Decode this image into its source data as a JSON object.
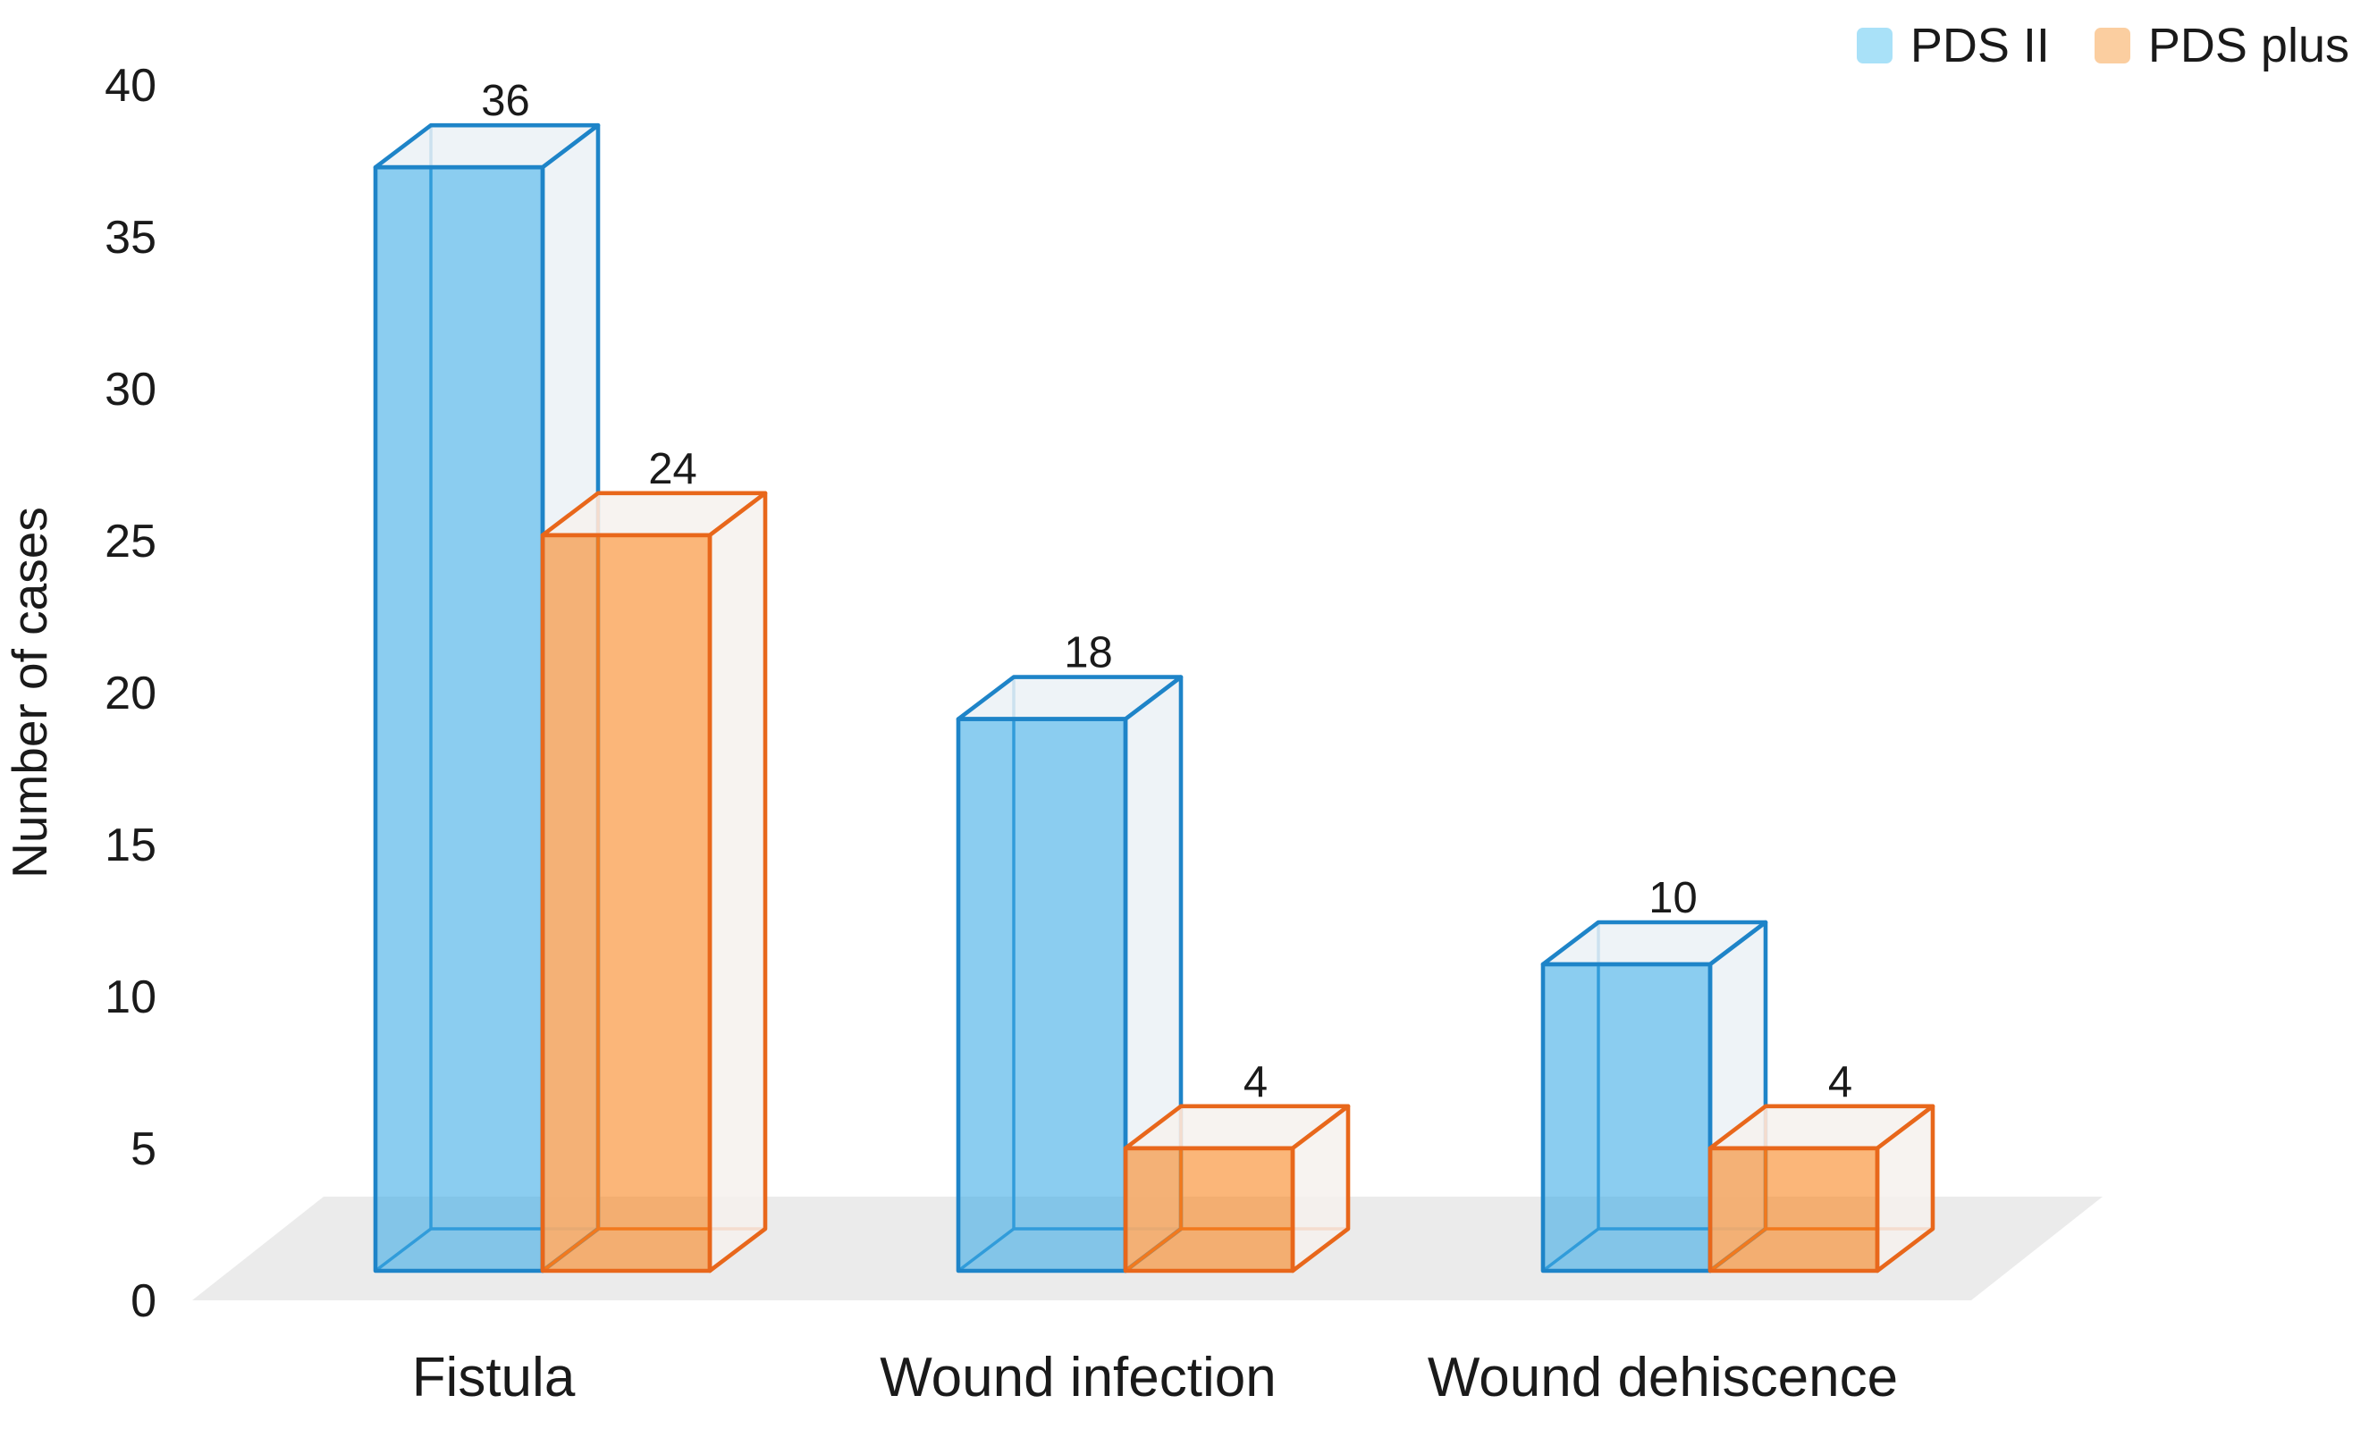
{
  "chart_data": {
    "type": "bar",
    "variant": "3d-column",
    "title": "",
    "categories": [
      "Fistula",
      "Wound infection",
      "Wound dehiscence"
    ],
    "series": [
      {
        "name": "PDS II",
        "values": [
          36,
          18,
          10
        ],
        "edge_color": "#1E84C8",
        "front_color": "#3EACE6",
        "face_color": "#EBF1F6",
        "legend_color": "#A9E1F8"
      },
      {
        "name": "PDS plus",
        "values": [
          24,
          4,
          4
        ],
        "edge_color": "#E8671B",
        "front_color": "#F88520",
        "face_color": "#F6F1ED",
        "legend_color": "#FBCEA0"
      }
    ],
    "data_labels": true,
    "xlabel": "",
    "ylabel": "Number of cases",
    "ylim": [
      0,
      40
    ],
    "yticks": [
      0,
      5,
      10,
      15,
      20,
      25,
      30,
      35,
      40
    ],
    "grid": false,
    "axis_lines": false,
    "legend_position": "top-right",
    "floor_color": "#EBEBEB",
    "text_color": "#1A1A1A",
    "background": "#FFFFFF"
  }
}
